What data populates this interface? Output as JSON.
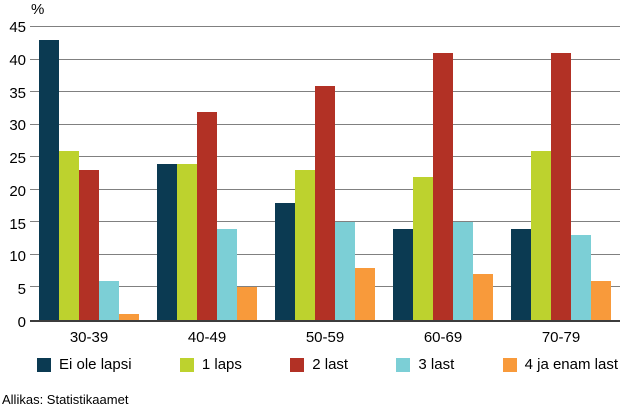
{
  "chart_data": {
    "type": "bar",
    "title": "",
    "ylabel": "%",
    "ylim": [
      0,
      45
    ],
    "ytick_step": 5,
    "grid": true,
    "legend_position": "bottom",
    "categories": [
      "30-39",
      "40-49",
      "50-59",
      "60-69",
      "70-79"
    ],
    "series": [
      {
        "name": "Ei ole lapsi",
        "color": "#0b3a52",
        "values": [
          43,
          24,
          18,
          14,
          14
        ]
      },
      {
        "name": "1 laps",
        "color": "#bdd22e",
        "values": [
          26,
          24,
          23,
          22,
          26
        ]
      },
      {
        "name": "2 last",
        "color": "#b23125",
        "values": [
          23,
          32,
          36,
          41,
          41
        ]
      },
      {
        "name": "3 last",
        "color": "#7ccfd6",
        "values": [
          6,
          14,
          15,
          15,
          13
        ]
      },
      {
        "name": "4 ja enam last",
        "color": "#f89a3b",
        "values": [
          1,
          5,
          8,
          7,
          6
        ]
      }
    ]
  },
  "colors": {
    "gridline": "#808080",
    "axis": "#3c3c3c"
  },
  "source": "Allikas: Statistikaamet"
}
